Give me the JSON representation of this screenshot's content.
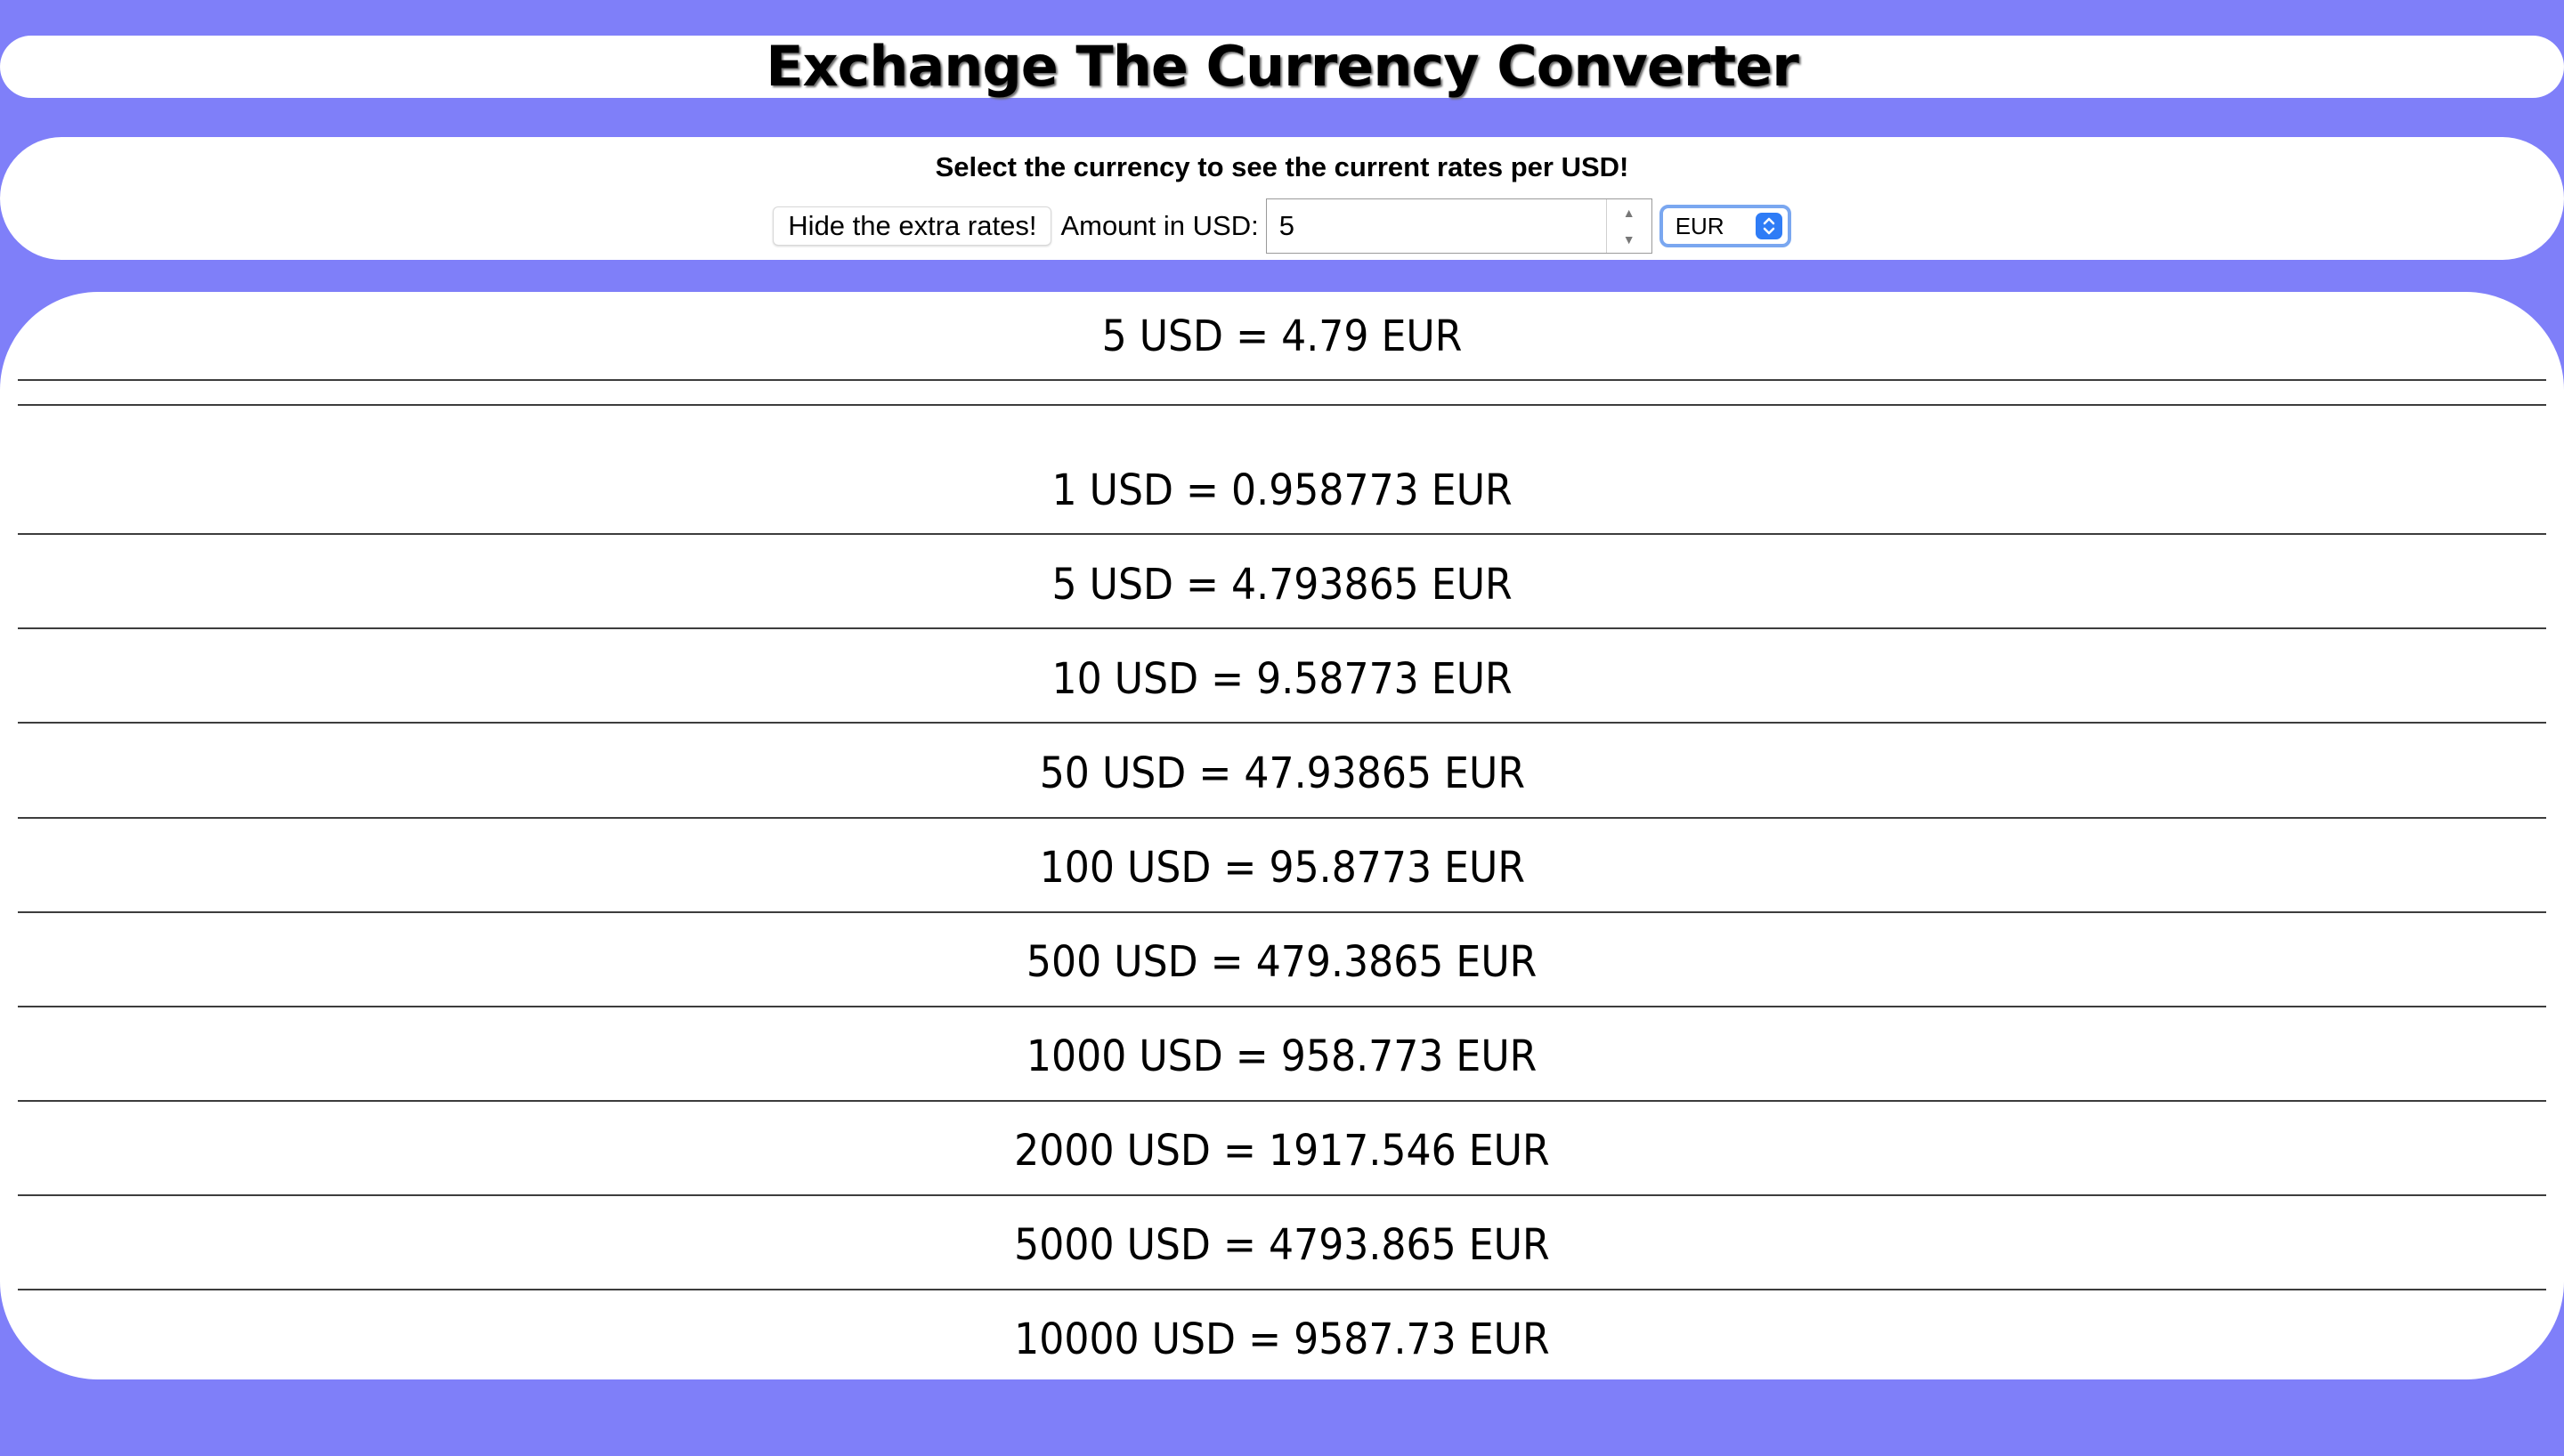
{
  "header": {
    "title": "Exchange The Currency Converter"
  },
  "controls": {
    "subtitle": "Select the currency to see the current rates per USD!",
    "toggle_label": "Hide the extra rates!",
    "amount_label": "Amount in USD:",
    "amount_value": "5",
    "currency_selected": "EUR",
    "accent_color": "#2f7cf6"
  },
  "result": {
    "main": "5 USD = 4.79 EUR",
    "rates": [
      "1 USD = 0.958773 EUR",
      "5 USD = 4.793865 EUR",
      "10 USD = 9.58773 EUR",
      "50 USD = 47.93865 EUR",
      "100 USD = 95.8773 EUR",
      "500 USD = 479.3865 EUR",
      "1000 USD = 958.773 EUR",
      "2000 USD = 1917.546 EUR",
      "5000 USD = 4793.865 EUR",
      "10000 USD = 9587.73 EUR"
    ]
  },
  "theme": {
    "background": "#7f7ff9",
    "panel": "#ffffff"
  }
}
